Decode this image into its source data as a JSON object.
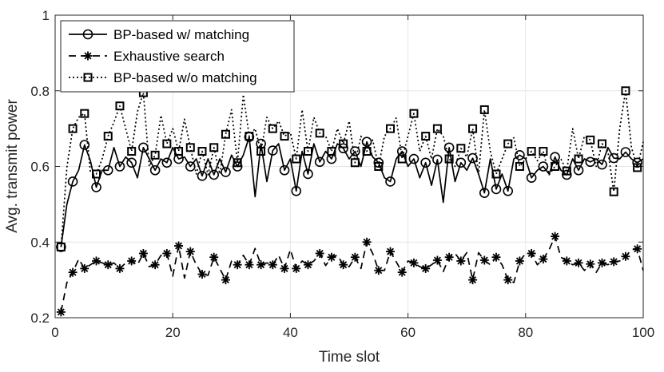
{
  "chart_data": {
    "type": "line",
    "xlabel": "Time slot",
    "ylabel": "Avg. transmit power",
    "xlim": [
      0,
      100
    ],
    "ylim": [
      0.2,
      1
    ],
    "xticks": [
      0,
      20,
      40,
      60,
      80,
      100
    ],
    "yticks": [
      0.2,
      0.4,
      0.6,
      0.8,
      1
    ],
    "xtick_labels": [
      "0",
      "20",
      "40",
      "60",
      "80",
      "100"
    ],
    "ytick_labels": [
      "0.2",
      "0.4",
      "0.6",
      "0.8",
      "1"
    ],
    "grid": true,
    "legend_position": "top-left",
    "x": [
      1,
      2,
      3,
      4,
      5,
      6,
      7,
      8,
      9,
      10,
      11,
      12,
      13,
      14,
      15,
      16,
      17,
      18,
      19,
      20,
      21,
      22,
      23,
      24,
      25,
      26,
      27,
      28,
      29,
      30,
      31,
      32,
      33,
      34,
      35,
      36,
      37,
      38,
      39,
      40,
      41,
      42,
      43,
      44,
      45,
      46,
      47,
      48,
      49,
      50,
      51,
      52,
      53,
      54,
      55,
      56,
      57,
      58,
      59,
      60,
      61,
      62,
      63,
      64,
      65,
      66,
      67,
      68,
      69,
      70,
      71,
      72,
      73,
      74,
      75,
      76,
      77,
      78,
      79,
      80,
      81,
      82,
      83,
      84,
      85,
      86,
      87,
      88,
      89,
      90,
      91,
      92,
      93,
      94,
      95,
      96,
      97,
      98,
      99,
      100
    ],
    "series": [
      {
        "name": "BP-based w/ matching",
        "line_style": "solid",
        "marker": "circle",
        "marker_every": 2,
        "color": "#000000",
        "values": [
          0.387,
          0.5,
          0.56,
          0.59,
          0.657,
          0.615,
          0.545,
          0.59,
          0.59,
          0.65,
          0.6,
          0.625,
          0.61,
          0.57,
          0.65,
          0.62,
          0.59,
          0.62,
          0.61,
          0.65,
          0.62,
          0.625,
          0.6,
          0.62,
          0.575,
          0.62,
          0.578,
          0.62,
          0.585,
          0.63,
          0.6,
          0.63,
          0.678,
          0.52,
          0.66,
          0.56,
          0.642,
          0.66,
          0.59,
          0.62,
          0.535,
          0.64,
          0.58,
          0.66,
          0.612,
          0.64,
          0.62,
          0.66,
          0.648,
          0.62,
          0.64,
          0.6,
          0.665,
          0.625,
          0.61,
          0.57,
          0.56,
          0.62,
          0.64,
          0.6,
          0.62,
          0.57,
          0.61,
          0.55,
          0.618,
          0.505,
          0.65,
          0.56,
          0.61,
          0.59,
          0.622,
          0.58,
          0.53,
          0.62,
          0.54,
          0.58,
          0.535,
          0.62,
          0.63,
          0.62,
          0.57,
          0.59,
          0.6,
          0.58,
          0.625,
          0.59,
          0.578,
          0.62,
          0.59,
          0.62,
          0.612,
          0.62,
          0.605,
          0.65,
          0.622,
          0.62,
          0.638,
          0.62,
          0.61,
          0.62
        ]
      },
      {
        "name": "Exhaustive search",
        "line_style": "dashed",
        "marker": "asterisk",
        "marker_every": 2,
        "color": "#000000",
        "values": [
          0.215,
          0.293,
          0.32,
          0.355,
          0.33,
          0.34,
          0.35,
          0.345,
          0.34,
          0.345,
          0.33,
          0.345,
          0.35,
          0.34,
          0.37,
          0.335,
          0.34,
          0.365,
          0.37,
          0.31,
          0.39,
          0.305,
          0.375,
          0.34,
          0.315,
          0.312,
          0.36,
          0.33,
          0.3,
          0.35,
          0.34,
          0.365,
          0.34,
          0.383,
          0.34,
          0.345,
          0.34,
          0.365,
          0.33,
          0.38,
          0.33,
          0.35,
          0.34,
          0.35,
          0.37,
          0.338,
          0.36,
          0.365,
          0.34,
          0.335,
          0.36,
          0.33,
          0.4,
          0.37,
          0.325,
          0.325,
          0.375,
          0.348,
          0.32,
          0.35,
          0.345,
          0.335,
          0.33,
          0.34,
          0.352,
          0.322,
          0.36,
          0.37,
          0.35,
          0.372,
          0.3,
          0.372,
          0.352,
          0.34,
          0.36,
          0.34,
          0.3,
          0.293,
          0.35,
          0.37,
          0.37,
          0.34,
          0.355,
          0.38,
          0.415,
          0.36,
          0.35,
          0.34,
          0.345,
          0.325,
          0.342,
          0.32,
          0.345,
          0.34,
          0.348,
          0.35,
          0.362,
          0.38,
          0.382,
          0.325
        ]
      },
      {
        "name": "BP-based w/o matching",
        "line_style": "dotted",
        "marker": "square",
        "marker_every": 2,
        "color": "#000000",
        "values": [
          0.387,
          0.598,
          0.7,
          0.73,
          0.74,
          0.585,
          0.58,
          0.62,
          0.68,
          0.717,
          0.76,
          0.7,
          0.64,
          0.745,
          0.795,
          0.6,
          0.63,
          0.735,
          0.66,
          0.7,
          0.64,
          0.725,
          0.65,
          0.58,
          0.64,
          0.578,
          0.65,
          0.58,
          0.685,
          0.75,
          0.61,
          0.79,
          0.68,
          0.7,
          0.64,
          0.73,
          0.7,
          0.72,
          0.68,
          0.69,
          0.62,
          0.75,
          0.64,
          0.73,
          0.688,
          0.68,
          0.64,
          0.7,
          0.66,
          0.72,
          0.61,
          0.68,
          0.64,
          0.67,
          0.6,
          0.68,
          0.7,
          0.728,
          0.62,
          0.68,
          0.74,
          0.64,
          0.68,
          0.62,
          0.7,
          0.68,
          0.62,
          0.6,
          0.648,
          0.625,
          0.7,
          0.58,
          0.75,
          0.64,
          0.58,
          0.62,
          0.66,
          0.676,
          0.6,
          0.62,
          0.64,
          0.615,
          0.64,
          0.578,
          0.6,
          0.62,
          0.588,
          0.7,
          0.62,
          0.68,
          0.67,
          0.6,
          0.66,
          0.64,
          0.533,
          0.7,
          0.8,
          0.65,
          0.597,
          0.665
        ]
      }
    ]
  }
}
